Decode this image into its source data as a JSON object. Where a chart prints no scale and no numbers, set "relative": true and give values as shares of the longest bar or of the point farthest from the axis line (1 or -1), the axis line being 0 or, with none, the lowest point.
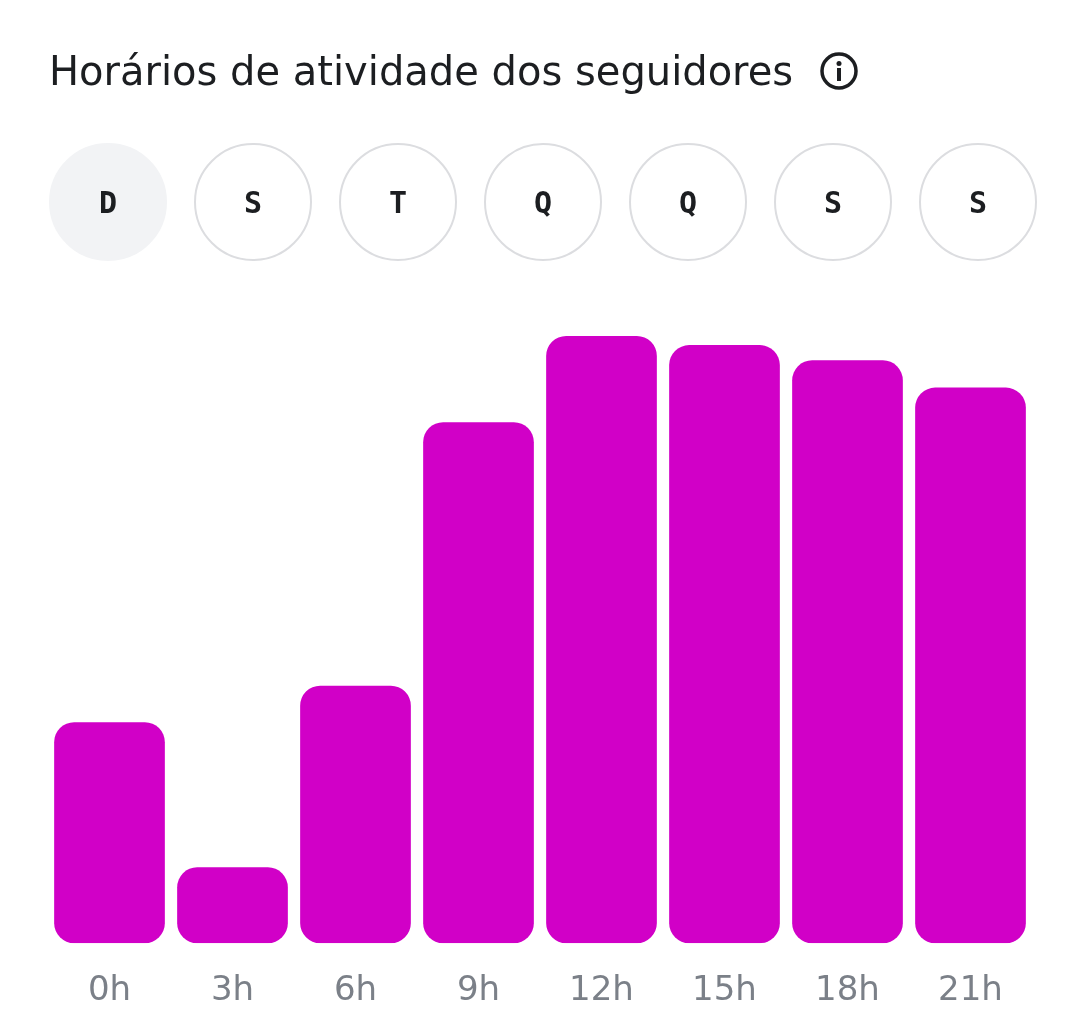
{
  "chart_data": {
    "type": "bar",
    "title": "Horários de atividade dos seguidores",
    "annotations": [
      "D",
      "S",
      "T",
      "Q",
      "Q",
      "S",
      "S"
    ],
    "categories": [
      "0h",
      "3h",
      "6h",
      "9h",
      "12h",
      "15h",
      "18h",
      "21h"
    ],
    "values": [
      0.364,
      0.125,
      0.424,
      0.858,
      1,
      0.985,
      0.96,
      0.915
    ],
    "color": "#d100c7",
    "relative": true,
    "grid": false,
    "legend": false
  }
}
